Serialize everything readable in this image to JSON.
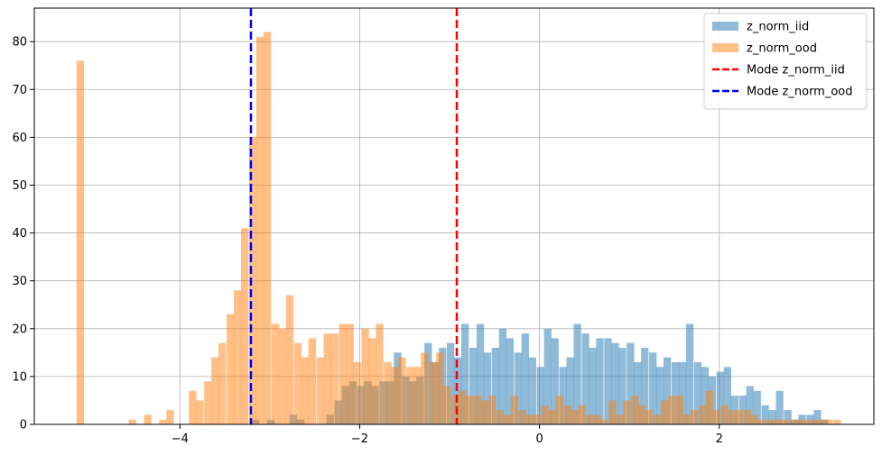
{
  "chart_data": {
    "type": "histogram",
    "title": "",
    "xlabel": "",
    "ylabel": "",
    "xlim": [
      -5.62,
      3.72
    ],
    "ylim": [
      0,
      87
    ],
    "xticks": [
      -4,
      -2,
      0,
      2
    ],
    "xtick_labels": [
      "−4",
      "−2",
      "0",
      "2"
    ],
    "yticks": [
      0,
      10,
      20,
      30,
      40,
      50,
      60,
      70,
      80
    ],
    "grid": true,
    "legend_position": "top-right",
    "bin_start": -5.2,
    "bin_width": 0.0833,
    "series": [
      {
        "name": "z_norm_iid",
        "color": "#1f77b4",
        "opacity": 0.5,
        "bins": [
          [
            -3.2,
            1
          ],
          [
            -3.12,
            0
          ],
          [
            -3.03,
            1
          ],
          [
            -2.95,
            0
          ],
          [
            -2.87,
            0
          ],
          [
            -2.78,
            2
          ],
          [
            -2.7,
            1
          ],
          [
            -2.62,
            0
          ],
          [
            -2.53,
            0
          ],
          [
            -2.45,
            0
          ],
          [
            -2.37,
            2
          ],
          [
            -2.28,
            5
          ],
          [
            -2.2,
            8
          ],
          [
            -2.12,
            9
          ],
          [
            -2.03,
            8
          ],
          [
            -1.95,
            9
          ],
          [
            -1.87,
            8
          ],
          [
            -1.78,
            9
          ],
          [
            -1.7,
            9
          ],
          [
            -1.62,
            15
          ],
          [
            -1.53,
            10
          ],
          [
            -1.45,
            9
          ],
          [
            -1.37,
            10
          ],
          [
            -1.28,
            17
          ],
          [
            -1.2,
            13
          ],
          [
            -1.12,
            16
          ],
          [
            -1.03,
            17
          ],
          [
            -0.95,
            14
          ],
          [
            -0.87,
            21
          ],
          [
            -0.78,
            16
          ],
          [
            -0.7,
            21
          ],
          [
            -0.62,
            15
          ],
          [
            -0.53,
            16
          ],
          [
            -0.45,
            20
          ],
          [
            -0.37,
            18
          ],
          [
            -0.28,
            15
          ],
          [
            -0.2,
            19
          ],
          [
            -0.12,
            14
          ],
          [
            -0.03,
            12
          ],
          [
            0.05,
            20
          ],
          [
            0.13,
            18
          ],
          [
            0.22,
            12
          ],
          [
            0.3,
            14
          ],
          [
            0.38,
            21
          ],
          [
            0.47,
            19
          ],
          [
            0.55,
            16
          ],
          [
            0.63,
            18
          ],
          [
            0.72,
            18
          ],
          [
            0.8,
            17
          ],
          [
            0.88,
            16
          ],
          [
            0.97,
            17
          ],
          [
            1.05,
            13
          ],
          [
            1.13,
            16
          ],
          [
            1.22,
            15
          ],
          [
            1.3,
            12
          ],
          [
            1.38,
            14
          ],
          [
            1.47,
            13
          ],
          [
            1.55,
            13
          ],
          [
            1.63,
            21
          ],
          [
            1.72,
            13
          ],
          [
            1.8,
            12
          ],
          [
            1.88,
            10
          ],
          [
            1.97,
            11
          ],
          [
            2.05,
            12
          ],
          [
            2.13,
            6
          ],
          [
            2.22,
            6
          ],
          [
            2.3,
            8
          ],
          [
            2.38,
            7
          ],
          [
            2.47,
            4
          ],
          [
            2.55,
            3
          ],
          [
            2.63,
            7
          ],
          [
            2.72,
            3
          ],
          [
            2.8,
            1
          ],
          [
            2.88,
            2
          ],
          [
            2.97,
            2
          ],
          [
            3.05,
            3
          ],
          [
            3.13,
            1
          ]
        ]
      },
      {
        "name": "z_norm_ood",
        "color": "#ff7f0e",
        "opacity": 0.5,
        "bins": [
          [
            -5.15,
            76
          ],
          [
            -4.57,
            1
          ],
          [
            -4.4,
            2
          ],
          [
            -4.23,
            1
          ],
          [
            -4.15,
            3
          ],
          [
            -3.9,
            7
          ],
          [
            -3.82,
            5
          ],
          [
            -3.73,
            9
          ],
          [
            -3.65,
            14
          ],
          [
            -3.57,
            17
          ],
          [
            -3.48,
            23
          ],
          [
            -3.4,
            28
          ],
          [
            -3.32,
            41
          ],
          [
            -3.23,
            60
          ],
          [
            -3.15,
            81
          ],
          [
            -3.07,
            82
          ],
          [
            -2.98,
            21
          ],
          [
            -2.9,
            20
          ],
          [
            -2.82,
            27
          ],
          [
            -2.73,
            17
          ],
          [
            -2.65,
            14
          ],
          [
            -2.57,
            18
          ],
          [
            -2.48,
            14
          ],
          [
            -2.4,
            19
          ],
          [
            -2.32,
            19
          ],
          [
            -2.23,
            21
          ],
          [
            -2.15,
            21
          ],
          [
            -2.07,
            13
          ],
          [
            -1.98,
            20
          ],
          [
            -1.9,
            18
          ],
          [
            -1.82,
            21
          ],
          [
            -1.73,
            13
          ],
          [
            -1.65,
            12
          ],
          [
            -1.57,
            14
          ],
          [
            -1.48,
            12
          ],
          [
            -1.4,
            12
          ],
          [
            -1.32,
            15
          ],
          [
            -1.23,
            13
          ],
          [
            -1.15,
            15
          ],
          [
            -1.07,
            8
          ],
          [
            -0.98,
            6
          ],
          [
            -0.9,
            7
          ],
          [
            -0.82,
            6
          ],
          [
            -0.73,
            6
          ],
          [
            -0.65,
            5
          ],
          [
            -0.57,
            6
          ],
          [
            -0.48,
            3
          ],
          [
            -0.4,
            2
          ],
          [
            -0.32,
            6
          ],
          [
            -0.23,
            3
          ],
          [
            -0.15,
            2
          ],
          [
            -0.07,
            2
          ],
          [
            0.02,
            4
          ],
          [
            0.1,
            3
          ],
          [
            0.18,
            6
          ],
          [
            0.27,
            4
          ],
          [
            0.35,
            3
          ],
          [
            0.43,
            4
          ],
          [
            0.52,
            2
          ],
          [
            0.6,
            2
          ],
          [
            0.68,
            1
          ],
          [
            0.77,
            5
          ],
          [
            0.85,
            2
          ],
          [
            0.93,
            5
          ],
          [
            1.02,
            6
          ],
          [
            1.1,
            4
          ],
          [
            1.18,
            3
          ],
          [
            1.27,
            2
          ],
          [
            1.35,
            5
          ],
          [
            1.43,
            6
          ],
          [
            1.52,
            6
          ],
          [
            1.6,
            2
          ],
          [
            1.68,
            3
          ],
          [
            1.77,
            4
          ],
          [
            1.85,
            7
          ],
          [
            1.93,
            3
          ],
          [
            2.02,
            4
          ],
          [
            2.1,
            3
          ],
          [
            2.18,
            3
          ],
          [
            2.27,
            3
          ],
          [
            2.35,
            2
          ],
          [
            2.43,
            1
          ],
          [
            2.52,
            1
          ],
          [
            2.6,
            1
          ],
          [
            2.68,
            1
          ],
          [
            2.77,
            1
          ],
          [
            2.85,
            1
          ],
          [
            2.93,
            1
          ],
          [
            3.02,
            1
          ],
          [
            3.1,
            1
          ],
          [
            3.18,
            1
          ],
          [
            3.27,
            1
          ]
        ]
      }
    ],
    "vlines": [
      {
        "name": "Mode z_norm_iid",
        "x": -0.92,
        "color": "#ff0000",
        "style": "dashed"
      },
      {
        "name": "Mode z_norm_ood",
        "x": -3.21,
        "color": "#0000ff",
        "style": "dashed"
      }
    ]
  }
}
